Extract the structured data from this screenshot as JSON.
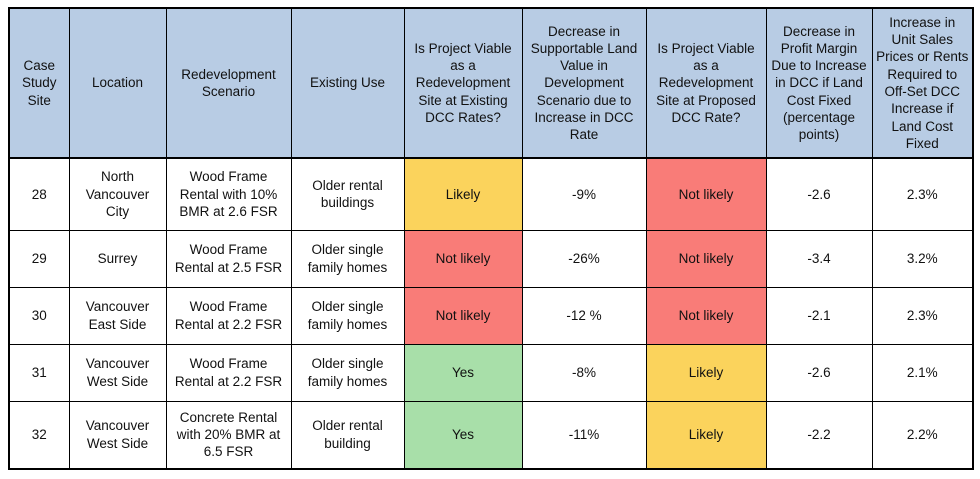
{
  "colors": {
    "header_bg": "#B8CCE4",
    "status": {
      "yes": "#A8DFA9",
      "likely": "#FBD35C",
      "not_likely": "#F97C78"
    }
  },
  "table": {
    "columns": [
      {
        "label": "Case Study Site"
      },
      {
        "label": "Location"
      },
      {
        "label": "Redevelopment Scenario"
      },
      {
        "label": "Existing Use"
      },
      {
        "label": "Is Project Viable as a Redevelopment Site at Existing DCC Rates?"
      },
      {
        "label": "Decrease in Supportable Land Value in Development Scenario due to Increase in DCC Rate"
      },
      {
        "label": "Is Project Viable as a Redevelopment Site at Proposed DCC Rate?"
      },
      {
        "label": "Decrease in Profit Margin Due to Increase in DCC if Land Cost Fixed (percentage points)"
      },
      {
        "label": "Increase in Unit Sales Prices or Rents Required to Off-Set DCC Increase if Land Cost Fixed"
      }
    ],
    "rows": [
      {
        "site": "28",
        "location": "North Vancouver City",
        "scenario": "Wood Frame Rental with 10% BMR at 2.6 FSR",
        "existing_use": "Older rental buildings",
        "viable_existing": {
          "label": "Likely",
          "status": "likely"
        },
        "land_value_decrease": "-9%",
        "viable_proposed": {
          "label": "Not likely",
          "status": "not_likely"
        },
        "profit_margin_decrease": "-2.6",
        "price_rent_increase": "2.3%"
      },
      {
        "site": "29",
        "location": "Surrey",
        "scenario": "Wood Frame Rental at 2.5 FSR",
        "existing_use": "Older single family homes",
        "viable_existing": {
          "label": "Not likely",
          "status": "not_likely"
        },
        "land_value_decrease": "-26%",
        "viable_proposed": {
          "label": "Not likely",
          "status": "not_likely"
        },
        "profit_margin_decrease": "-3.4",
        "price_rent_increase": "3.2%"
      },
      {
        "site": "30",
        "location": "Vancouver East Side",
        "scenario": "Wood Frame Rental at 2.2 FSR",
        "existing_use": "Older single family homes",
        "viable_existing": {
          "label": "Not likely",
          "status": "not_likely"
        },
        "land_value_decrease": "-12 %",
        "viable_proposed": {
          "label": "Not likely",
          "status": "not_likely"
        },
        "profit_margin_decrease": "-2.1",
        "price_rent_increase": "2.3%"
      },
      {
        "site": "31",
        "location": "Vancouver West Side",
        "scenario": "Wood Frame Rental at 2.2 FSR",
        "existing_use": "Older single family homes",
        "viable_existing": {
          "label": "Yes",
          "status": "yes"
        },
        "land_value_decrease": "-8%",
        "viable_proposed": {
          "label": "Likely",
          "status": "likely"
        },
        "profit_margin_decrease": "-2.6",
        "price_rent_increase": "2.1%"
      },
      {
        "site": "32",
        "location": "Vancouver West Side",
        "scenario": "Concrete Rental with 20% BMR at 6.5 FSR",
        "existing_use": "Older rental building",
        "viable_existing": {
          "label": "Yes",
          "status": "yes"
        },
        "land_value_decrease": "-11%",
        "viable_proposed": {
          "label": "Likely",
          "status": "likely"
        },
        "profit_margin_decrease": "-2.2",
        "price_rent_increase": "2.2%"
      }
    ]
  }
}
